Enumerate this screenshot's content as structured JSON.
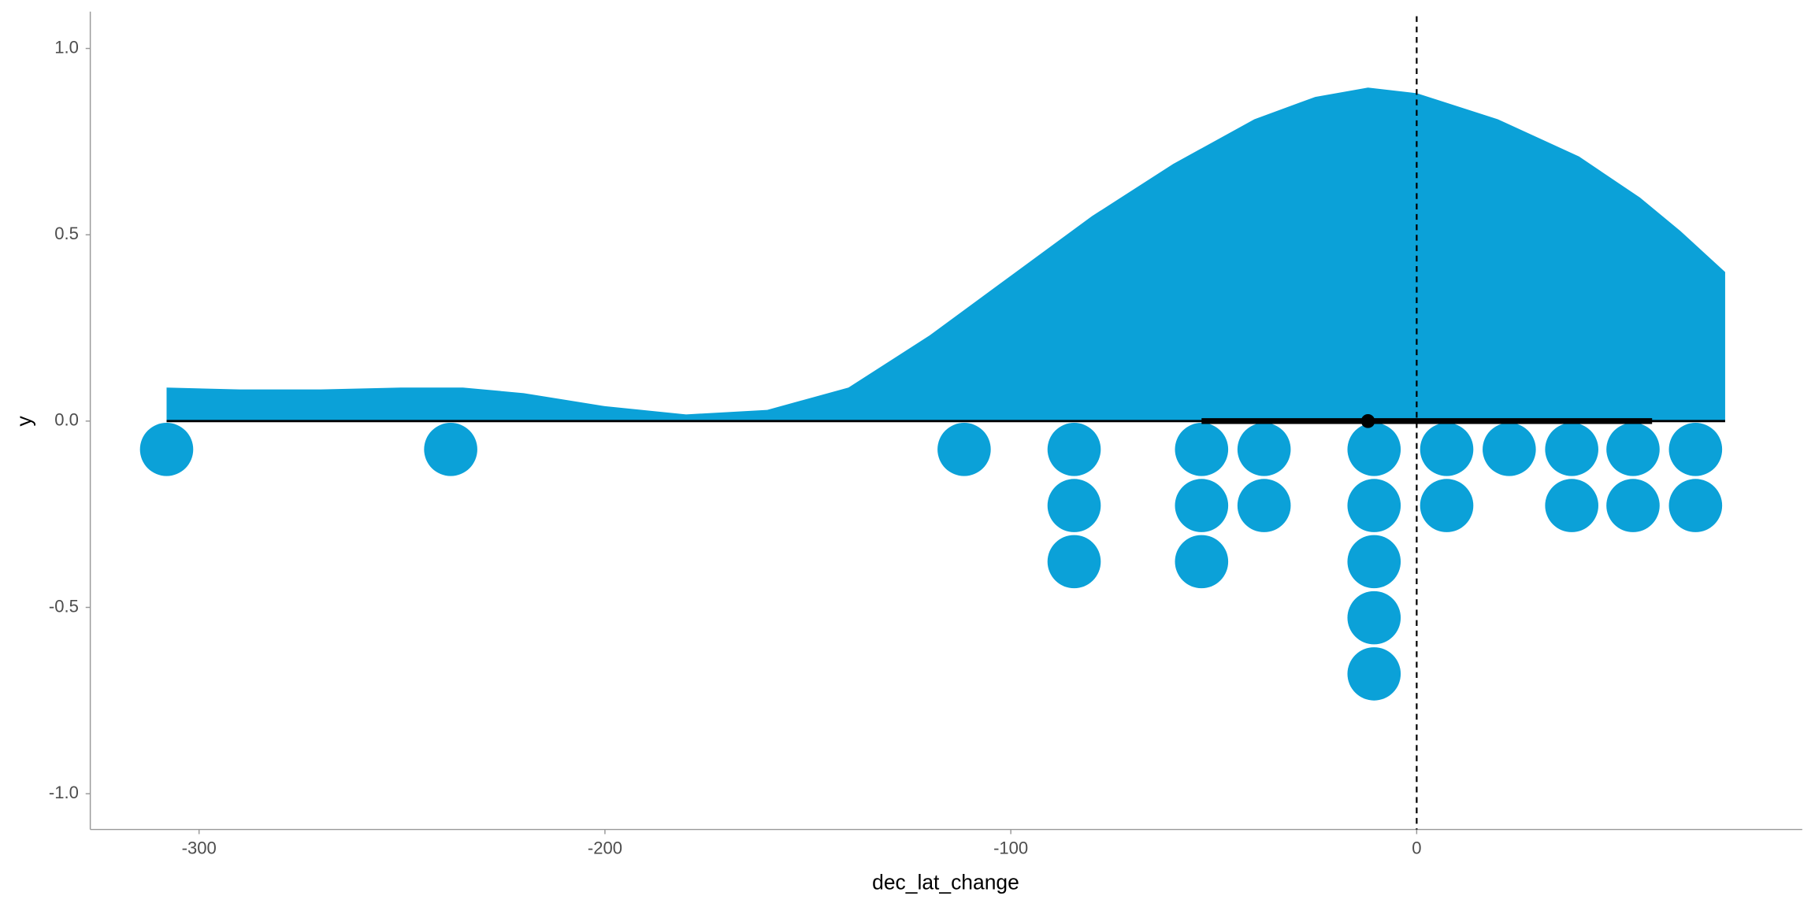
{
  "chart_data": {
    "type": "raincloud",
    "xlabel": "dec_lat_change",
    "ylabel": "y",
    "xlim": [
      -326.8,
      95
    ],
    "ylim": [
      -1.096,
      1.099
    ],
    "xticks": [
      -300,
      -200,
      -100,
      0
    ],
    "yticks": [
      {
        "value": -1,
        "label": "-1.0"
      },
      {
        "value": -0.5,
        "label": "-0.5"
      },
      {
        "value": 0,
        "label": "0.0"
      },
      {
        "value": 0.5,
        "label": "0.5"
      },
      {
        "value": 1,
        "label": "1.0"
      }
    ],
    "color": "#0ba1d8",
    "density": {
      "x": [
        -308,
        -290,
        -270,
        -250,
        -235,
        -220,
        -200,
        -180,
        -160,
        -140,
        -120,
        -100,
        -80,
        -60,
        -40,
        -25,
        -12,
        0,
        20,
        40,
        55,
        65,
        76
      ],
      "values": [
        0.09,
        0.085,
        0.085,
        0.09,
        0.09,
        0.075,
        0.04,
        0.018,
        0.03,
        0.09,
        0.23,
        0.39,
        0.55,
        0.69,
        0.81,
        0.87,
        0.895,
        0.88,
        0.81,
        0.71,
        0.6,
        0.51,
        0.4
      ]
    },
    "points": [
      -308,
      -238,
      -111.5,
      -84.4,
      -84.4,
      -84.4,
      -53,
      -53,
      -53,
      -37.6,
      -37.6,
      -10.5,
      -10.5,
      -10.5,
      -10.5,
      -10.5,
      7.4,
      7.4,
      22.8,
      38.2,
      38.2,
      53.3,
      53.3,
      68.7,
      68.7
    ],
    "interval": {
      "point": -12,
      "thick": [
        -53,
        58
      ],
      "thin": [
        -308,
        76
      ]
    },
    "vline": 0
  }
}
